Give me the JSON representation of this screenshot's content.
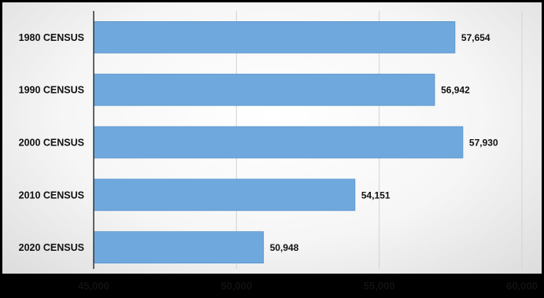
{
  "chart_data": {
    "type": "bar",
    "orientation": "horizontal",
    "title": "",
    "xlabel": "",
    "ylabel": "",
    "categories": [
      "1980 CENSUS",
      "1990 CENSUS",
      "2000 CENSUS",
      "2010 CENSUS",
      "2020 CENSUS"
    ],
    "values": [
      57654,
      56942,
      57930,
      54151,
      50948
    ],
    "value_labels": [
      "57,654",
      "56,942",
      "57,930",
      "54,151",
      "50,948"
    ],
    "xlim": [
      45000,
      60000
    ],
    "x_ticks": [
      45000,
      50000,
      55000,
      60000
    ],
    "x_tick_labels": [
      "45,000",
      "50,000",
      "55,000",
      "60,000"
    ],
    "grid": true,
    "legend": "none",
    "colors": {
      "bar": "#6fa8dc",
      "bar_edge": "#5b95cc",
      "gridline": "#d3d3d3",
      "axis": "#333333"
    }
  }
}
